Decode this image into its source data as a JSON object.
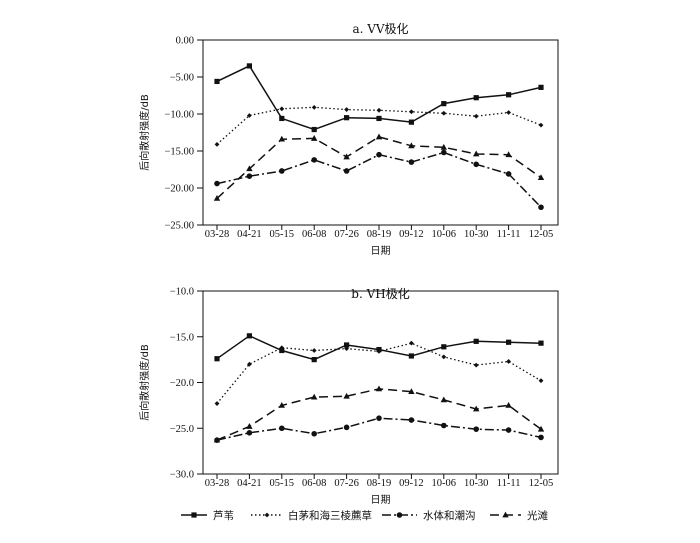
{
  "chart_data": [
    {
      "type": "line",
      "title": "a. VV极化",
      "xlabel": "日期",
      "ylabel": "后向散射强度/dB",
      "ylim": [
        -25,
        0
      ],
      "yticks": [
        "0.00",
        "−5.00",
        "−10.00",
        "−15.00",
        "−20.00",
        "−25.00"
      ],
      "categories": [
        "03-28",
        "04-21",
        "05-15",
        "06-08",
        "07-26",
        "08-19",
        "09-12",
        "10-06",
        "10-30",
        "11-11",
        "12-05"
      ],
      "series": [
        {
          "name": "芦苇",
          "values": [
            -5.6,
            -3.5,
            -10.6,
            -12.1,
            -10.5,
            -10.6,
            -11.1,
            -8.6,
            -7.8,
            -7.4,
            -6.4
          ]
        },
        {
          "name": "白茅和海三棱藨草",
          "values": [
            -14.1,
            -10.2,
            -9.3,
            -9.1,
            -9.4,
            -9.5,
            -9.7,
            -9.9,
            -10.3,
            -9.8,
            -11.5
          ]
        },
        {
          "name": "水体和潮沟",
          "values": [
            -19.4,
            -18.4,
            -17.7,
            -16.2,
            -17.7,
            -15.5,
            -16.5,
            -15.2,
            -16.8,
            -18.1,
            -22.6
          ]
        },
        {
          "name": "光滩",
          "values": [
            -21.4,
            -17.4,
            -13.4,
            -13.3,
            -15.8,
            -13.1,
            -14.3,
            -14.5,
            -15.4,
            -15.5,
            -18.6
          ]
        }
      ],
      "grid": false
    },
    {
      "type": "line",
      "title": "b. VH极化",
      "xlabel": "日期",
      "ylabel": "后向散射强度/dB",
      "ylim": [
        -30,
        -10
      ],
      "yticks": [
        "−10.0",
        "−15.0",
        "−20.0",
        "−25.0",
        "−30.0"
      ],
      "categories": [
        "03-28",
        "04-21",
        "05-15",
        "06-08",
        "07-26",
        "08-19",
        "09-12",
        "10-06",
        "10-30",
        "11-11",
        "12-05"
      ],
      "series": [
        {
          "name": "芦苇",
          "values": [
            -17.4,
            -14.9,
            -16.5,
            -17.5,
            -15.9,
            -16.4,
            -17.1,
            -16.1,
            -15.5,
            -15.6,
            -15.7
          ]
        },
        {
          "name": "白茅和海三棱藨草",
          "values": [
            -22.3,
            -18.0,
            -16.2,
            -16.5,
            -16.3,
            -16.6,
            -15.7,
            -17.2,
            -18.1,
            -17.7,
            -19.8
          ]
        },
        {
          "name": "水体和潮沟",
          "values": [
            -26.3,
            -25.5,
            -25.0,
            -25.6,
            -24.9,
            -23.9,
            -24.1,
            -24.7,
            -25.1,
            -25.2,
            -26.0
          ]
        },
        {
          "name": "光滩",
          "values": [
            -26.3,
            -24.8,
            -22.5,
            -21.6,
            -21.5,
            -20.7,
            -21.0,
            -21.9,
            -22.9,
            -22.5,
            -25.1
          ]
        }
      ],
      "grid": false
    }
  ],
  "legend": {
    "placement": "bottom",
    "items": [
      {
        "label": "芦苇",
        "dash": "",
        "marker": "square"
      },
      {
        "label": "白茅和海三棱藨草",
        "dash": "1.5,2.5",
        "marker": "diamond"
      },
      {
        "label": "水体和潮沟",
        "dash": "9,3,2,3",
        "marker": "circle"
      },
      {
        "label": "光滩",
        "dash": "9,5",
        "marker": "triangle"
      }
    ]
  },
  "styles": {
    "color": "#111111"
  }
}
